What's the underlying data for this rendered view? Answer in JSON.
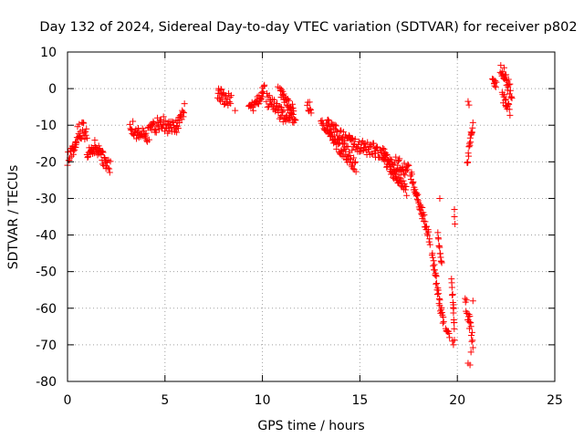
{
  "chart_data": {
    "type": "scatter",
    "title": "Day 132 of 2024, Sidereal Day-to-day VTEC variation (SDTVAR) for receiver p802",
    "xlabel": "GPS time / hours",
    "ylabel": "SDTVAR / TECUs",
    "xlim": [
      0,
      25
    ],
    "ylim": [
      -80,
      10
    ],
    "xticks": [
      0,
      5,
      10,
      15,
      20,
      25
    ],
    "yticks": [
      -80,
      -70,
      -60,
      -50,
      -40,
      -30,
      -20,
      -10,
      0,
      10
    ],
    "grid": true,
    "marker": "+",
    "colors": {
      "series": "#ff0000",
      "grid": "#a0a0a0",
      "axes": "#000000"
    },
    "segments": [
      {
        "x": [
          0.0,
          0.15,
          0.3,
          0.45
        ],
        "y": [
          -19,
          -18,
          -16,
          -15
        ],
        "spread": 2.0
      },
      {
        "x": [
          0.4,
          0.6,
          0.8,
          1.0
        ],
        "y": [
          -14,
          -12,
          -11,
          -12
        ],
        "spread": 2.5
      },
      {
        "x": [
          1.0,
          1.2,
          1.4,
          1.6
        ],
        "y": [
          -17,
          -18,
          -16,
          -17
        ],
        "spread": 2.0
      },
      {
        "x": [
          1.6,
          1.8,
          2.0,
          2.2
        ],
        "y": [
          -16,
          -19,
          -21,
          -21
        ],
        "spread": 2.0
      },
      {
        "x": [
          3.2,
          3.6,
          4.0,
          4.4,
          4.8,
          5.2,
          5.6,
          6.0
        ],
        "y": [
          -10,
          -12,
          -13,
          -11,
          -9,
          -11,
          -10,
          -6
        ],
        "spread": 2.0
      },
      {
        "x": [
          7.7,
          7.9,
          8.1,
          8.4
        ],
        "y": [
          -1,
          -2,
          -3,
          -3
        ],
        "spread": 1.8
      },
      {
        "x": [
          9.3,
          9.6,
          9.8,
          10.0,
          10.1
        ],
        "y": [
          -5,
          -5,
          -3,
          -1,
          0
        ],
        "spread": 1.5
      },
      {
        "x": [
          10.2,
          10.6,
          11.0,
          11.4,
          11.7
        ],
        "y": [
          -3,
          -5,
          -7,
          -8,
          -9
        ],
        "spread": 2.0
      },
      {
        "x": [
          10.9,
          11.1,
          11.3,
          11.6
        ],
        "y": [
          -1,
          -2,
          -4,
          -6
        ],
        "spread": 1.5
      },
      {
        "x": [
          12.3,
          12.5
        ],
        "y": [
          -4,
          -6
        ],
        "spread": 1.5
      },
      {
        "x": [
          13.0,
          13.5,
          14.0,
          14.6,
          15.2,
          15.8,
          16.4,
          17.0,
          17.5
        ],
        "y": [
          -9,
          -11,
          -13,
          -15,
          -16,
          -17,
          -19,
          -21,
          -22
        ],
        "spread": 2.0
      },
      {
        "x": [
          13.3,
          13.8,
          14.3,
          14.8
        ],
        "y": [
          -11,
          -15,
          -18,
          -21
        ],
        "spread": 1.8
      },
      {
        "x": [
          16.2,
          16.6,
          17.0,
          17.4
        ],
        "y": [
          -18,
          -22,
          -25,
          -28
        ],
        "spread": 1.8
      },
      {
        "x": [
          17.6,
          17.9,
          18.2
        ],
        "y": [
          -23,
          -29,
          -35
        ],
        "spread": 1.5
      },
      {
        "x": [
          18.2,
          18.4,
          18.6
        ],
        "y": [
          -34,
          -38,
          -42
        ],
        "spread": 1.5
      },
      {
        "x": [
          18.7,
          18.9,
          19.1,
          19.3
        ],
        "y": [
          -45,
          -52,
          -59,
          -64
        ],
        "spread": 1.5
      },
      {
        "x": [
          19.0,
          19.2
        ],
        "y": [
          -40,
          -48
        ],
        "spread": 1.0
      },
      {
        "x": [
          19.4,
          19.6
        ],
        "y": [
          -65,
          -67
        ],
        "spread": 1.0
      },
      {
        "x": [
          19.7,
          19.8,
          19.85
        ],
        "y": [
          -52,
          -60,
          -68
        ],
        "spread": 1.5
      },
      {
        "x": [
          20.4,
          20.6,
          20.8
        ],
        "y": [
          -58,
          -63,
          -69
        ],
        "spread": 2.0
      },
      {
        "x": [
          20.5,
          20.6,
          20.7,
          20.8
        ],
        "y": [
          -20,
          -17,
          -13,
          -10
        ],
        "spread": 1.5
      },
      {
        "x": [
          21.8,
          22.0
        ],
        "y": [
          2,
          1
        ],
        "spread": 1.0
      },
      {
        "x": [
          22.2,
          22.4,
          22.6,
          22.8
        ],
        "y": [
          6,
          4,
          1,
          -2
        ],
        "spread": 2.0
      },
      {
        "x": [
          22.3,
          22.5,
          22.7
        ],
        "y": [
          -2,
          -4,
          -6
        ],
        "spread": 1.5
      }
    ],
    "points": [
      [
        19.85,
        -33
      ],
      [
        19.85,
        -35
      ],
      [
        19.88,
        -37
      ],
      [
        19.1,
        -30
      ],
      [
        8.6,
        -6
      ],
      [
        10.8,
        0.5
      ],
      [
        20.55,
        -3.5
      ],
      [
        20.6,
        -4.5
      ],
      [
        20.55,
        -75
      ],
      [
        20.65,
        -75.5
      ],
      [
        19.75,
        -69
      ],
      [
        19.8,
        -70
      ],
      [
        20.7,
        -72
      ],
      [
        20.8,
        -58
      ],
      [
        21.9,
        1.5
      ],
      [
        7.75,
        0
      ]
    ]
  }
}
